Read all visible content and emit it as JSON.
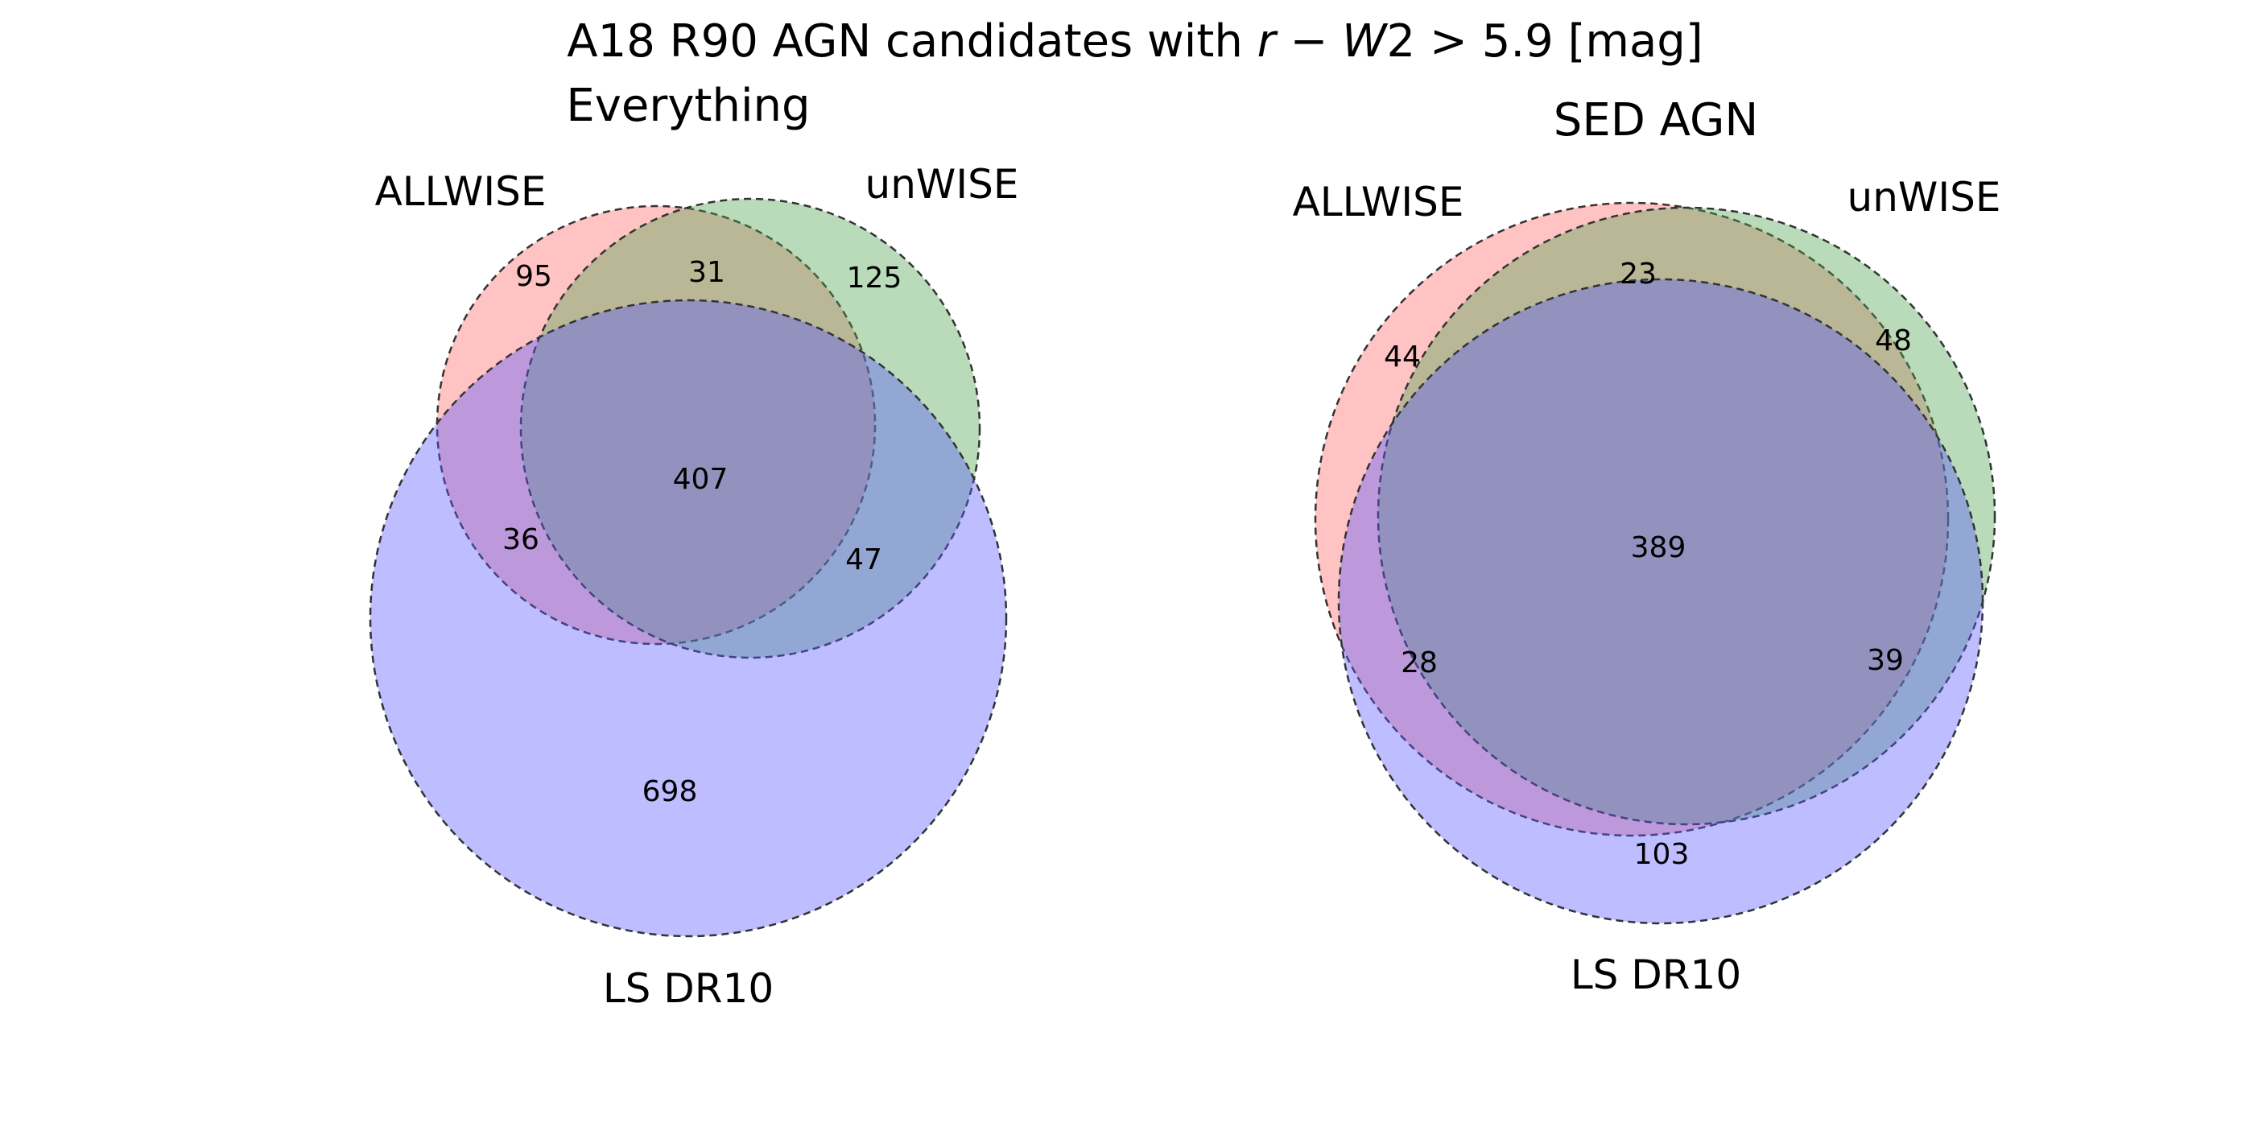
{
  "title": {
    "prefix": "A18 R90 AGN candidates with ",
    "math_r": "r",
    "math_minus": " − ",
    "math_W": "W",
    "math_2": "2",
    "math_gt": " > ",
    "math_value": "5.9",
    "math_unit": " [mag]"
  },
  "colors": {
    "set_a": "#ff6a6a",
    "set_b": "#4fa54f",
    "set_c": "#5a5aff"
  },
  "panels": [
    {
      "title": "Everything",
      "sets": [
        "ALLWISE",
        "unWISE",
        "LS DR10"
      ],
      "counts": {
        "a_only": "95",
        "ab_only": "31",
        "b_only": "125",
        "abc": "407",
        "ac_only": "36",
        "bc_only": "47",
        "c_only": "698"
      }
    },
    {
      "title": "SED AGN",
      "sets": [
        "ALLWISE",
        "unWISE",
        "LS DR10"
      ],
      "counts": {
        "ab_only": "23",
        "a_only": "44",
        "b_only": "48",
        "abc": "389",
        "ac_only": "28",
        "bc_only": "39",
        "c_only": "103"
      }
    }
  ]
}
